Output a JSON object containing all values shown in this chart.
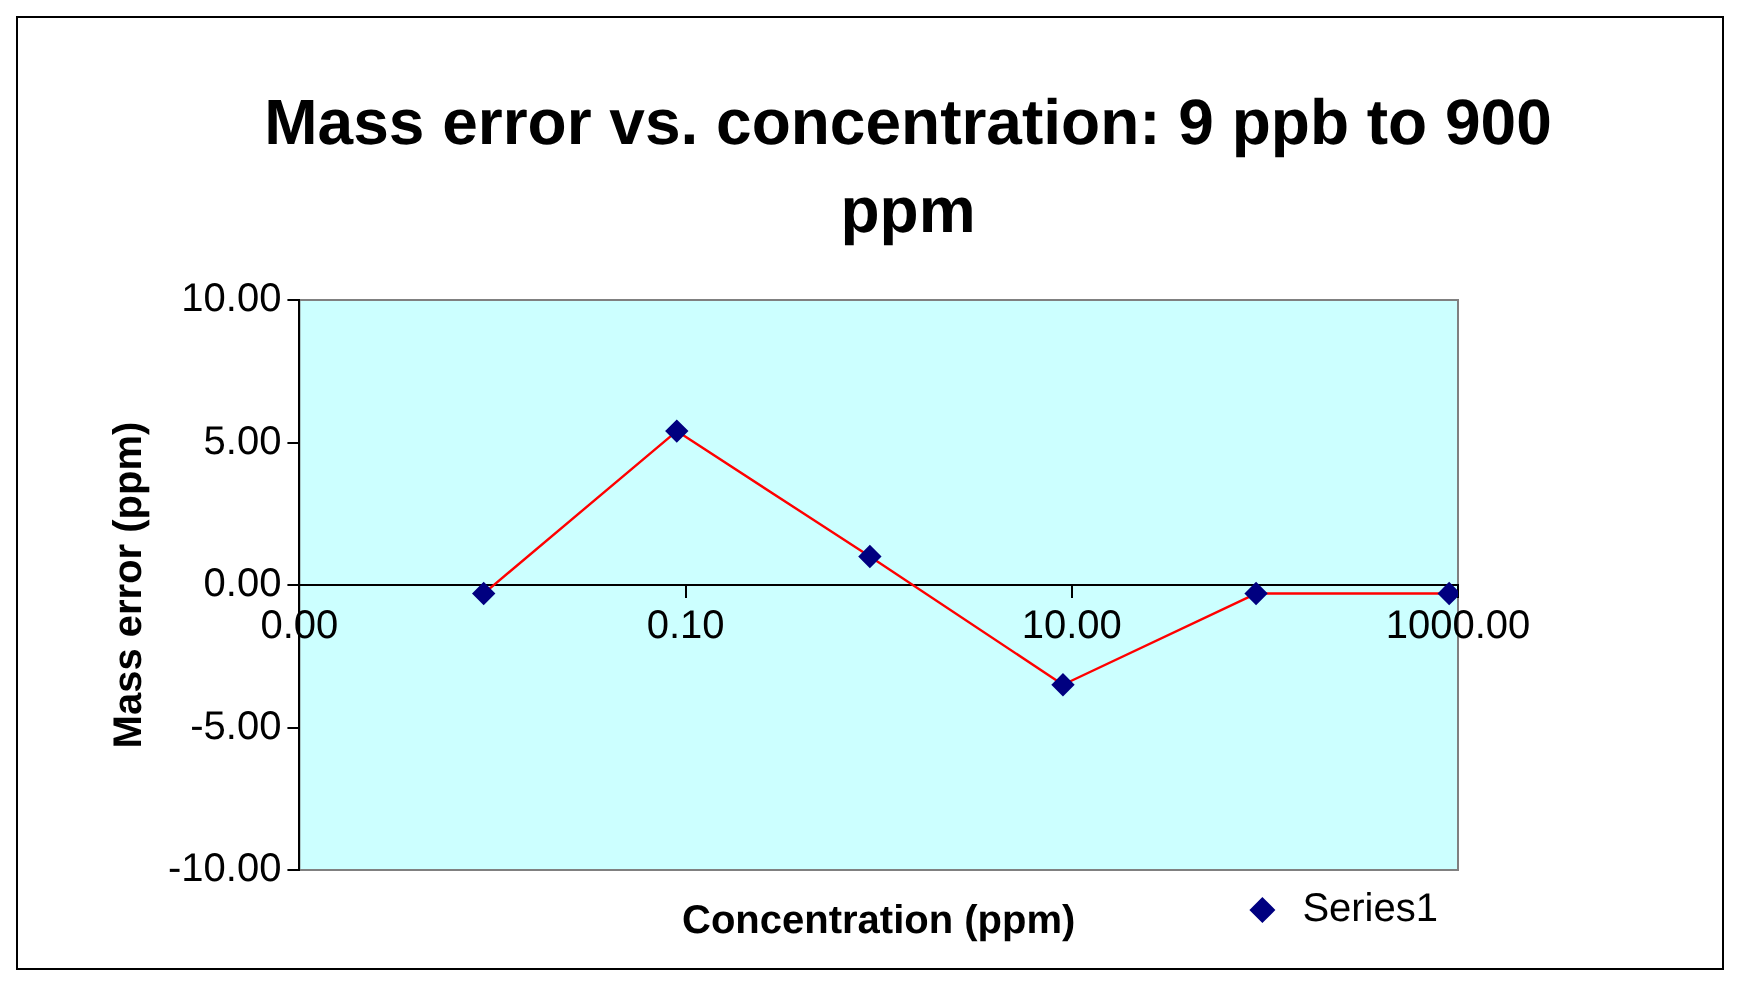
{
  "chart_data": {
    "type": "line",
    "title": "Mass error vs. concentration: 9 ppb to 900 ppm",
    "xlabel": "Concentration (ppm)",
    "ylabel": "Mass error (ppm)",
    "x": [
      0.009,
      0.09,
      0.9,
      9,
      90,
      900
    ],
    "series": [
      {
        "name": "Series1",
        "color": "#ff0000",
        "colors": [
          "#000080",
          "#000080",
          "#000080",
          "#000080",
          "#000080",
          "#000080"
        ],
        "values": [
          -0.3,
          5.4,
          1.0,
          -3.5,
          -0.3,
          -0.3
        ]
      }
    ],
    "log": "x",
    "xlim": [
      0.001,
      1000
    ],
    "xticks": [
      {
        "value": 0.001,
        "label": "0.00"
      },
      {
        "value": 0.1,
        "label": "0.10"
      },
      {
        "value": 10,
        "label": "10.00"
      },
      {
        "value": 1000,
        "label": "1000.00"
      }
    ],
    "ylim": [
      -10,
      10
    ],
    "yticks": [
      {
        "value": -10,
        "label": "-10.00"
      },
      {
        "value": -5,
        "label": "-5.00"
      },
      {
        "value": 0,
        "label": "0.00"
      },
      {
        "value": 5,
        "label": "5.00"
      },
      {
        "value": 10,
        "label": "10.00"
      }
    ],
    "grid": false,
    "legend": "bottom right",
    "marker": "diamond",
    "line_style": "solid"
  }
}
